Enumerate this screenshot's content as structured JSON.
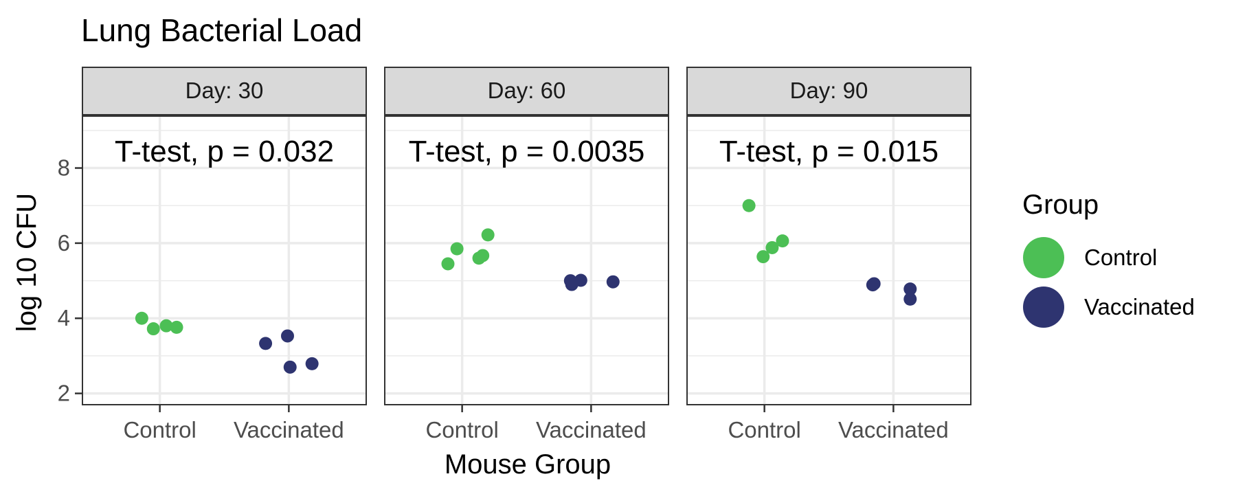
{
  "chart_data": {
    "type": "scatter",
    "title": "Lung Bacterial Load",
    "xlabel": "Mouse Group",
    "ylabel": "log 10 CFU",
    "categories": [
      "Control",
      "Vaccinated"
    ],
    "ylim": [
      1.7,
      9.4
    ],
    "yticks": [
      2,
      4,
      6,
      8
    ],
    "grid": true,
    "legend": {
      "title": "Group",
      "placement": "right",
      "entries": [
        {
          "name": "Control",
          "color": "#4cbf55"
        },
        {
          "name": "Vaccinated",
          "color": "#2e3470"
        }
      ]
    },
    "panels": [
      {
        "label": "Day: 30",
        "annotation": "T-test, p = 0.032",
        "points": [
          {
            "group": "Control",
            "x": 0.86,
            "y": 4.0
          },
          {
            "group": "Control",
            "x": 0.95,
            "y": 3.72
          },
          {
            "group": "Control",
            "x": 1.05,
            "y": 3.8
          },
          {
            "group": "Control",
            "x": 1.13,
            "y": 3.76
          },
          {
            "group": "Vaccinated",
            "x": 1.82,
            "y": 3.33
          },
          {
            "group": "Vaccinated",
            "x": 1.99,
            "y": 3.53
          },
          {
            "group": "Vaccinated",
            "x": 2.01,
            "y": 2.7
          },
          {
            "group": "Vaccinated",
            "x": 2.18,
            "y": 2.79
          }
        ]
      },
      {
        "label": "Day: 60",
        "annotation": "T-test, p = 0.0035",
        "points": [
          {
            "group": "Control",
            "x": 0.89,
            "y": 5.45
          },
          {
            "group": "Control",
            "x": 0.96,
            "y": 5.85
          },
          {
            "group": "Control",
            "x": 1.13,
            "y": 5.6
          },
          {
            "group": "Control",
            "x": 1.16,
            "y": 5.67
          },
          {
            "group": "Control",
            "x": 1.2,
            "y": 6.22
          },
          {
            "group": "Vaccinated",
            "x": 1.84,
            "y": 5.0
          },
          {
            "group": "Vaccinated",
            "x": 1.85,
            "y": 4.9
          },
          {
            "group": "Vaccinated",
            "x": 1.92,
            "y": 5.01
          },
          {
            "group": "Vaccinated",
            "x": 2.17,
            "y": 4.97
          }
        ]
      },
      {
        "label": "Day: 90",
        "annotation": "T-test, p = 0.015",
        "points": [
          {
            "group": "Control",
            "x": 0.88,
            "y": 7.0
          },
          {
            "group": "Control",
            "x": 0.99,
            "y": 5.64
          },
          {
            "group": "Control",
            "x": 1.06,
            "y": 5.88
          },
          {
            "group": "Control",
            "x": 1.14,
            "y": 6.06
          },
          {
            "group": "Vaccinated",
            "x": 1.84,
            "y": 4.89
          },
          {
            "group": "Vaccinated",
            "x": 1.85,
            "y": 4.92
          },
          {
            "group": "Vaccinated",
            "x": 2.13,
            "y": 4.78
          },
          {
            "group": "Vaccinated",
            "x": 2.13,
            "y": 4.51
          }
        ]
      }
    ]
  }
}
